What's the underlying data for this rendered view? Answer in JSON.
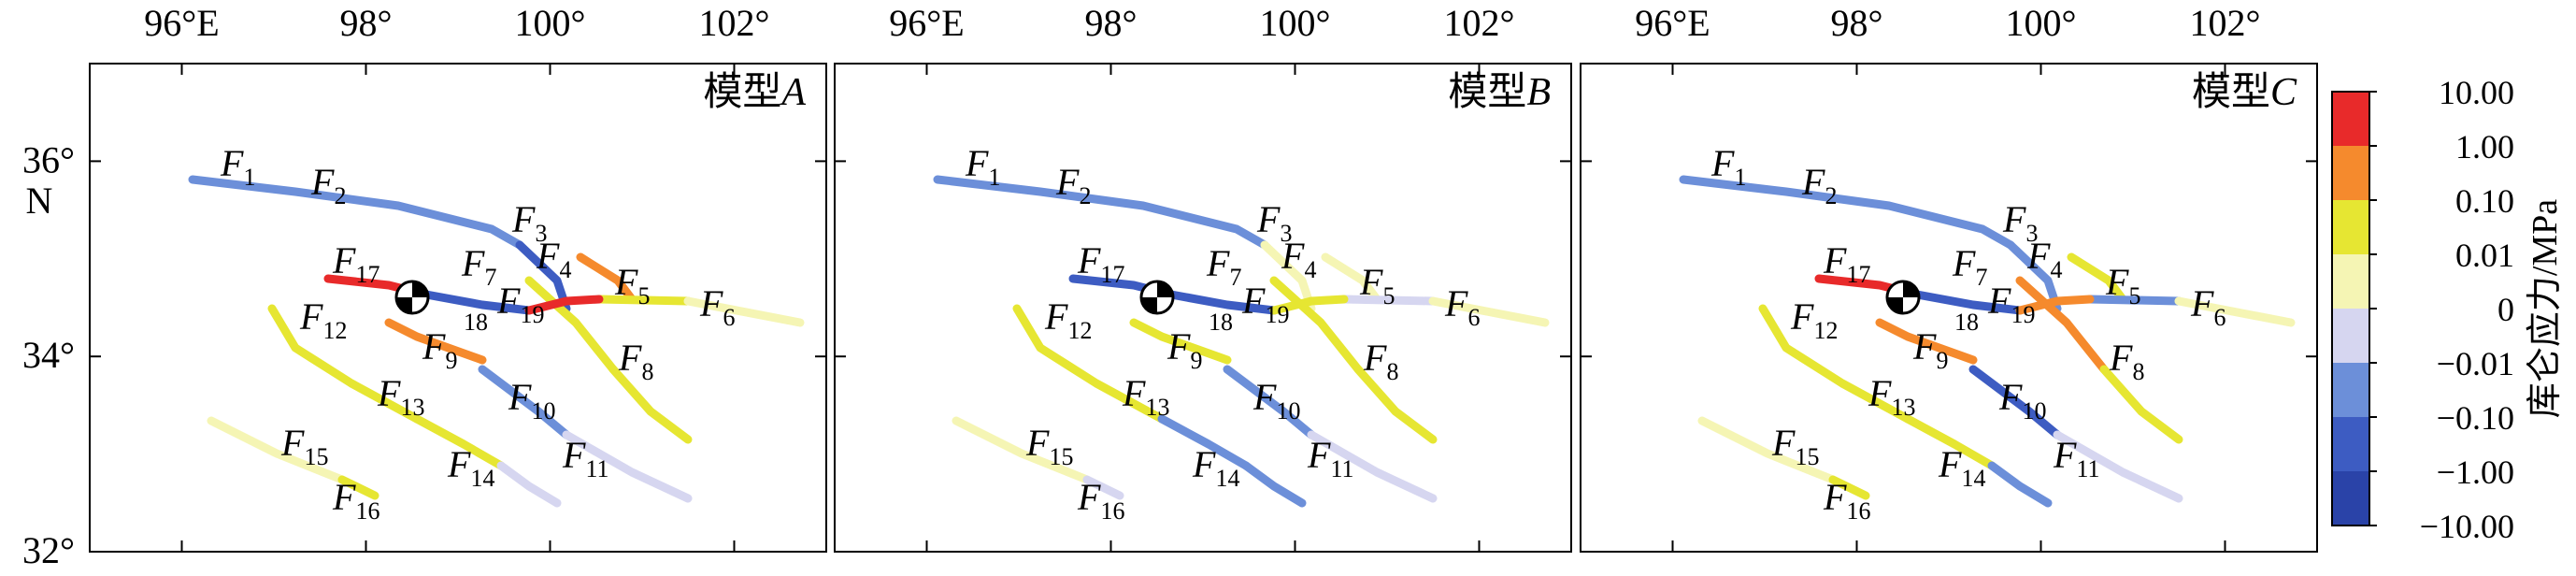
{
  "chart_data": {
    "type": "map",
    "x_ticks": [
      "96°E",
      "98°",
      "100°",
      "102°"
    ],
    "x_tick_values": [
      96,
      98,
      100,
      102
    ],
    "y_ticks": [
      "36°",
      "34°",
      "32°"
    ],
    "y_tick_values": [
      36,
      34,
      32
    ],
    "y_unit_label": "N",
    "xlim": [
      95,
      103
    ],
    "ylim": [
      32,
      37
    ],
    "panels": [
      {
        "label_prefix": "模型",
        "label_italic": "A"
      },
      {
        "label_prefix": "模型",
        "label_italic": "B"
      },
      {
        "label_prefix": "模型",
        "label_italic": "C"
      }
    ],
    "fault_labels": [
      {
        "main": "F",
        "sub": "1"
      },
      {
        "main": "F",
        "sub": "2"
      },
      {
        "main": "F",
        "sub": "3"
      },
      {
        "main": "F",
        "sub": "4"
      },
      {
        "main": "F",
        "sub": "5"
      },
      {
        "main": "F",
        "sub": "6"
      },
      {
        "main": "F",
        "sub": "7"
      },
      {
        "main": "F",
        "sub": "8"
      },
      {
        "main": "F",
        "sub": "9"
      },
      {
        "main": "F",
        "sub": "10"
      },
      {
        "main": "F",
        "sub": "11"
      },
      {
        "main": "F",
        "sub": "12"
      },
      {
        "main": "F",
        "sub": "13"
      },
      {
        "main": "F",
        "sub": "14"
      },
      {
        "main": "F",
        "sub": "15"
      },
      {
        "main": "F",
        "sub": "16"
      },
      {
        "main": "F",
        "sub": "17"
      },
      {
        "main": "",
        "sub": "18"
      },
      {
        "main": "F",
        "sub": "19"
      }
    ],
    "colorbar": {
      "title": "库仑应力/MPa",
      "tick_labels": [
        "10.00",
        "1.00",
        "0.10",
        "0.01",
        "0",
        "−0.01",
        "−0.10",
        "−1.00",
        "−10.00"
      ],
      "colors": [
        "#e82a2a",
        "#f58a2d",
        "#e6e632",
        "#f5f5b4",
        "#d6d6f0",
        "#6c8fd9",
        "#3d5cc2",
        "#2a43a8"
      ]
    },
    "epicenter": {
      "lon": 98.25,
      "lat": 34.6
    }
  }
}
